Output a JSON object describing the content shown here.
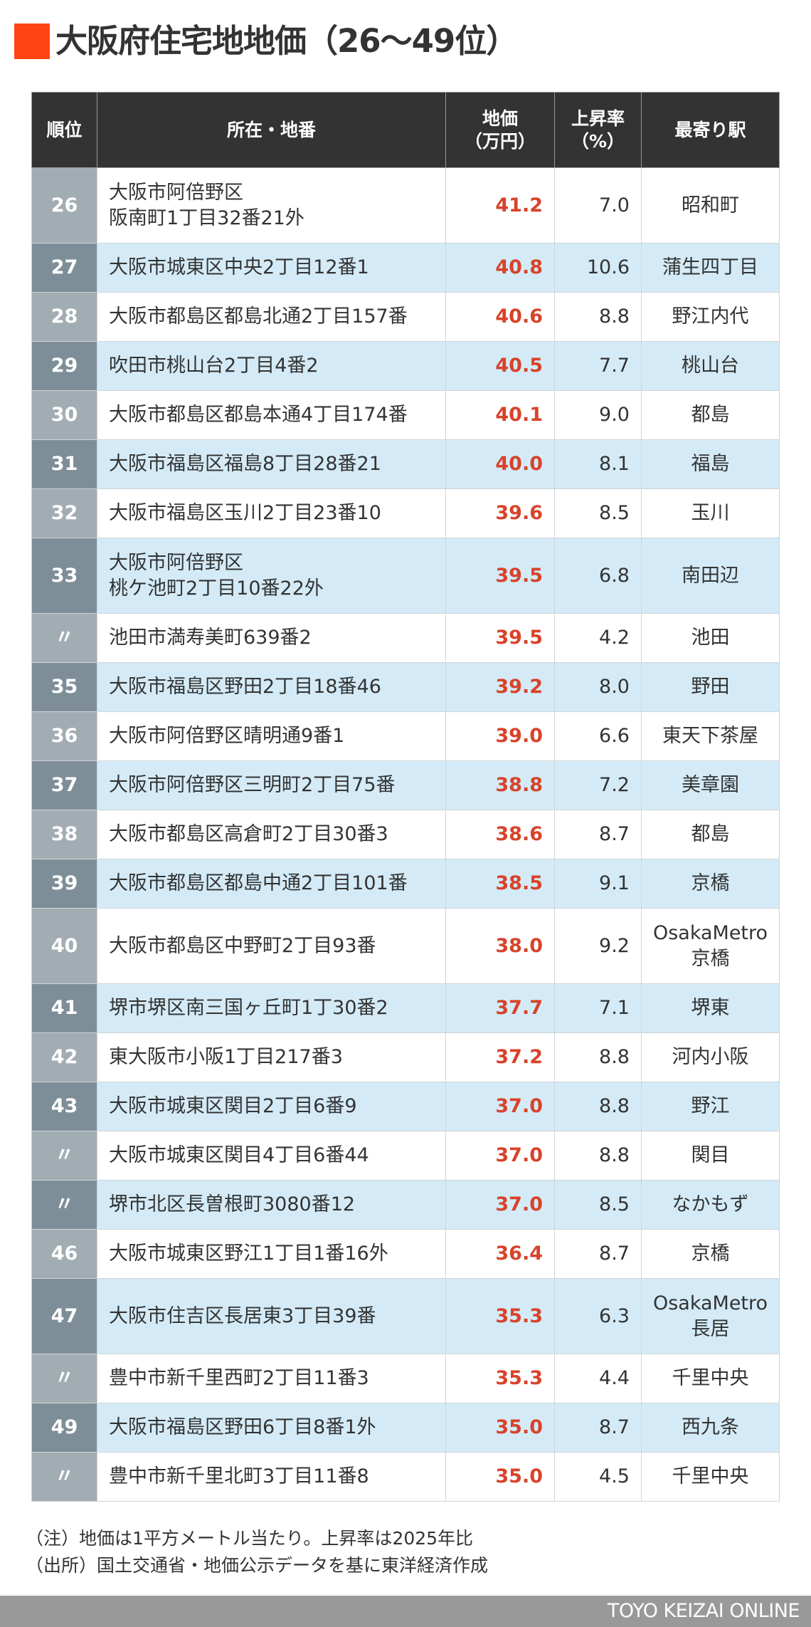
{
  "title": {
    "text": "大阪府住宅地地価（26〜49位）",
    "accent_color": "#ff4514"
  },
  "table": {
    "headers": {
      "rank": "順位",
      "location": "所在・地番",
      "price_line1": "地価",
      "price_line2": "（万円）",
      "rate_line1": "上昇率",
      "rate_line2": "（%）",
      "station": "最寄り駅"
    },
    "colors": {
      "header_bg": "#333333",
      "price_text": "#d8432a",
      "row_alt_bg": "#d4ebf7",
      "rank_light": "#a2adb3",
      "rank_dark": "#7e8e99"
    },
    "rows": [
      {
        "rank": "26",
        "location": [
          "大阪市阿倍野区",
          "阪南町1丁目32番21外"
        ],
        "price": "41.2",
        "rate": "7.0",
        "station": [
          "昭和町"
        ]
      },
      {
        "rank": "27",
        "location": [
          "大阪市城東区中央2丁目12番1"
        ],
        "price": "40.8",
        "rate": "10.6",
        "station": [
          "蒲生四丁目"
        ]
      },
      {
        "rank": "28",
        "location": [
          "大阪市都島区都島北通2丁目157番"
        ],
        "price": "40.6",
        "rate": "8.8",
        "station": [
          "野江内代"
        ]
      },
      {
        "rank": "29",
        "location": [
          "吹田市桃山台2丁目4番2"
        ],
        "price": "40.5",
        "rate": "7.7",
        "station": [
          "桃山台"
        ]
      },
      {
        "rank": "30",
        "location": [
          "大阪市都島区都島本通4丁目174番"
        ],
        "price": "40.1",
        "rate": "9.0",
        "station": [
          "都島"
        ]
      },
      {
        "rank": "31",
        "location": [
          "大阪市福島区福島8丁目28番21"
        ],
        "price": "40.0",
        "rate": "8.1",
        "station": [
          "福島"
        ]
      },
      {
        "rank": "32",
        "location": [
          "大阪市福島区玉川2丁目23番10"
        ],
        "price": "39.6",
        "rate": "8.5",
        "station": [
          "玉川"
        ]
      },
      {
        "rank": "33",
        "location": [
          "大阪市阿倍野区",
          "桃ケ池町2丁目10番22外"
        ],
        "price": "39.5",
        "rate": "6.8",
        "station": [
          "南田辺"
        ]
      },
      {
        "rank": "〃",
        "location": [
          "池田市満寿美町639番2"
        ],
        "price": "39.5",
        "rate": "4.2",
        "station": [
          "池田"
        ]
      },
      {
        "rank": "35",
        "location": [
          "大阪市福島区野田2丁目18番46"
        ],
        "price": "39.2",
        "rate": "8.0",
        "station": [
          "野田"
        ]
      },
      {
        "rank": "36",
        "location": [
          "大阪市阿倍野区晴明通9番1"
        ],
        "price": "39.0",
        "rate": "6.6",
        "station": [
          "東天下茶屋"
        ]
      },
      {
        "rank": "37",
        "location": [
          "大阪市阿倍野区三明町2丁目75番"
        ],
        "price": "38.8",
        "rate": "7.2",
        "station": [
          "美章園"
        ]
      },
      {
        "rank": "38",
        "location": [
          "大阪市都島区高倉町2丁目30番3"
        ],
        "price": "38.6",
        "rate": "8.7",
        "station": [
          "都島"
        ]
      },
      {
        "rank": "39",
        "location": [
          "大阪市都島区都島中通2丁目101番"
        ],
        "price": "38.5",
        "rate": "9.1",
        "station": [
          "京橋"
        ]
      },
      {
        "rank": "40",
        "location": [
          "大阪市都島区中野町2丁目93番"
        ],
        "price": "38.0",
        "rate": "9.2",
        "station": [
          "OsakaMetro",
          "京橋"
        ]
      },
      {
        "rank": "41",
        "location": [
          "堺市堺区南三国ヶ丘町1丁30番2"
        ],
        "price": "37.7",
        "rate": "7.1",
        "station": [
          "堺東"
        ]
      },
      {
        "rank": "42",
        "location": [
          "東大阪市小阪1丁目217番3"
        ],
        "price": "37.2",
        "rate": "8.8",
        "station": [
          "河内小阪"
        ]
      },
      {
        "rank": "43",
        "location": [
          "大阪市城東区関目2丁目6番9"
        ],
        "price": "37.0",
        "rate": "8.8",
        "station": [
          "野江"
        ]
      },
      {
        "rank": "〃",
        "location": [
          "大阪市城東区関目4丁目6番44"
        ],
        "price": "37.0",
        "rate": "8.8",
        "station": [
          "関目"
        ]
      },
      {
        "rank": "〃",
        "location": [
          "堺市北区長曽根町3080番12"
        ],
        "price": "37.0",
        "rate": "8.5",
        "station": [
          "なかもず"
        ]
      },
      {
        "rank": "46",
        "location": [
          "大阪市城東区野江1丁目1番16外"
        ],
        "price": "36.4",
        "rate": "8.7",
        "station": [
          "京橋"
        ]
      },
      {
        "rank": "47",
        "location": [
          "大阪市住吉区長居東3丁目39番"
        ],
        "price": "35.3",
        "rate": "6.3",
        "station": [
          "OsakaMetro",
          "長居"
        ]
      },
      {
        "rank": "〃",
        "location": [
          "豊中市新千里西町2丁目11番3"
        ],
        "price": "35.3",
        "rate": "4.4",
        "station": [
          "千里中央"
        ]
      },
      {
        "rank": "49",
        "location": [
          "大阪市福島区野田6丁目8番1外"
        ],
        "price": "35.0",
        "rate": "8.7",
        "station": [
          "西九条"
        ]
      },
      {
        "rank": "〃",
        "location": [
          "豊中市新千里北町3丁目11番8"
        ],
        "price": "35.0",
        "rate": "4.5",
        "station": [
          "千里中央"
        ]
      }
    ]
  },
  "notes": {
    "note": "（注）地価は1平方メートル当たり。上昇率は2025年比",
    "source": "（出所）国土交通省・地価公示データを基に東洋経済作成"
  },
  "footer": {
    "brand": "TOYO KEIZAI ONLINE"
  }
}
